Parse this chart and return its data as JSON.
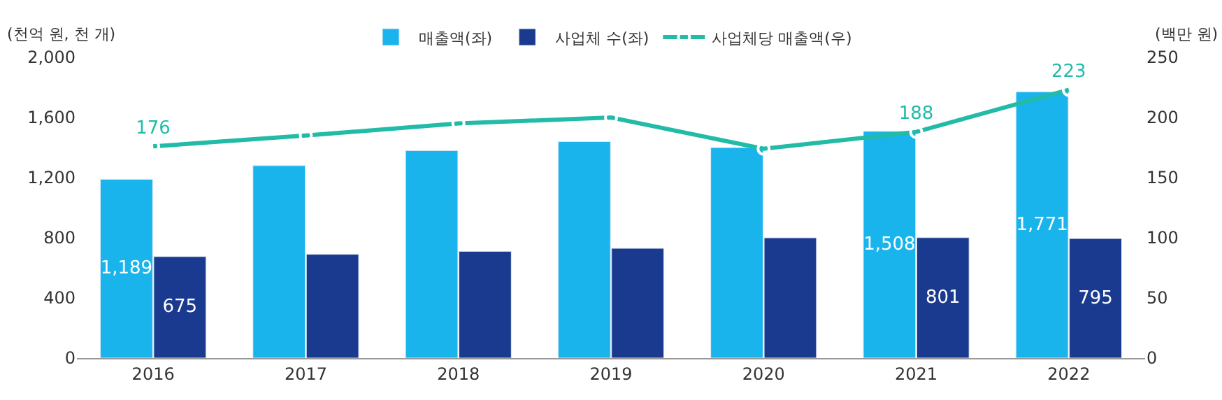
{
  "chart_data": {
    "type": "bar",
    "categories": [
      "2016",
      "2017",
      "2018",
      "2019",
      "2020",
      "2021",
      "2022"
    ],
    "ylabel": "(천억 원, 천 개)",
    "y2label": "(백만 원)",
    "ylim": [
      0,
      2000
    ],
    "yticks": [
      {
        "value": 0,
        "label": "0"
      },
      {
        "value": 400,
        "label": "400"
      },
      {
        "value": 800,
        "label": "800"
      },
      {
        "value": 1200,
        "label": "1,200"
      },
      {
        "value": 1600,
        "label": "1,600"
      },
      {
        "value": 2000,
        "label": "2,000"
      }
    ],
    "y2lim": [
      0,
      250
    ],
    "y2ticks": [
      0,
      50,
      100,
      150,
      200,
      250
    ],
    "legend": "top",
    "series": [
      {
        "name": "매출액(좌)",
        "color": "#19b4ec",
        "values": [
          1189,
          1280,
          1380,
          1440,
          1400,
          1508,
          1771
        ],
        "value_labels": [
          "1,189",
          null,
          null,
          null,
          null,
          "1,508",
          "1,771"
        ]
      },
      {
        "name": "사업체 수(좌)",
        "color": "#1a3a8f",
        "values": [
          675,
          690,
          710,
          730,
          800,
          801,
          795
        ],
        "value_labels": [
          "675",
          null,
          null,
          null,
          null,
          "801",
          "795"
        ]
      },
      {
        "name": "사업체당 매출액(우)",
        "type": "line",
        "axis": "y2",
        "marker": "circle",
        "line_style": "solid",
        "color": "#22bba8",
        "values": [
          176,
          185,
          195,
          200,
          174,
          188,
          223
        ],
        "value_labels": [
          "176",
          null,
          null,
          null,
          null,
          "188",
          "223"
        ]
      }
    ]
  }
}
